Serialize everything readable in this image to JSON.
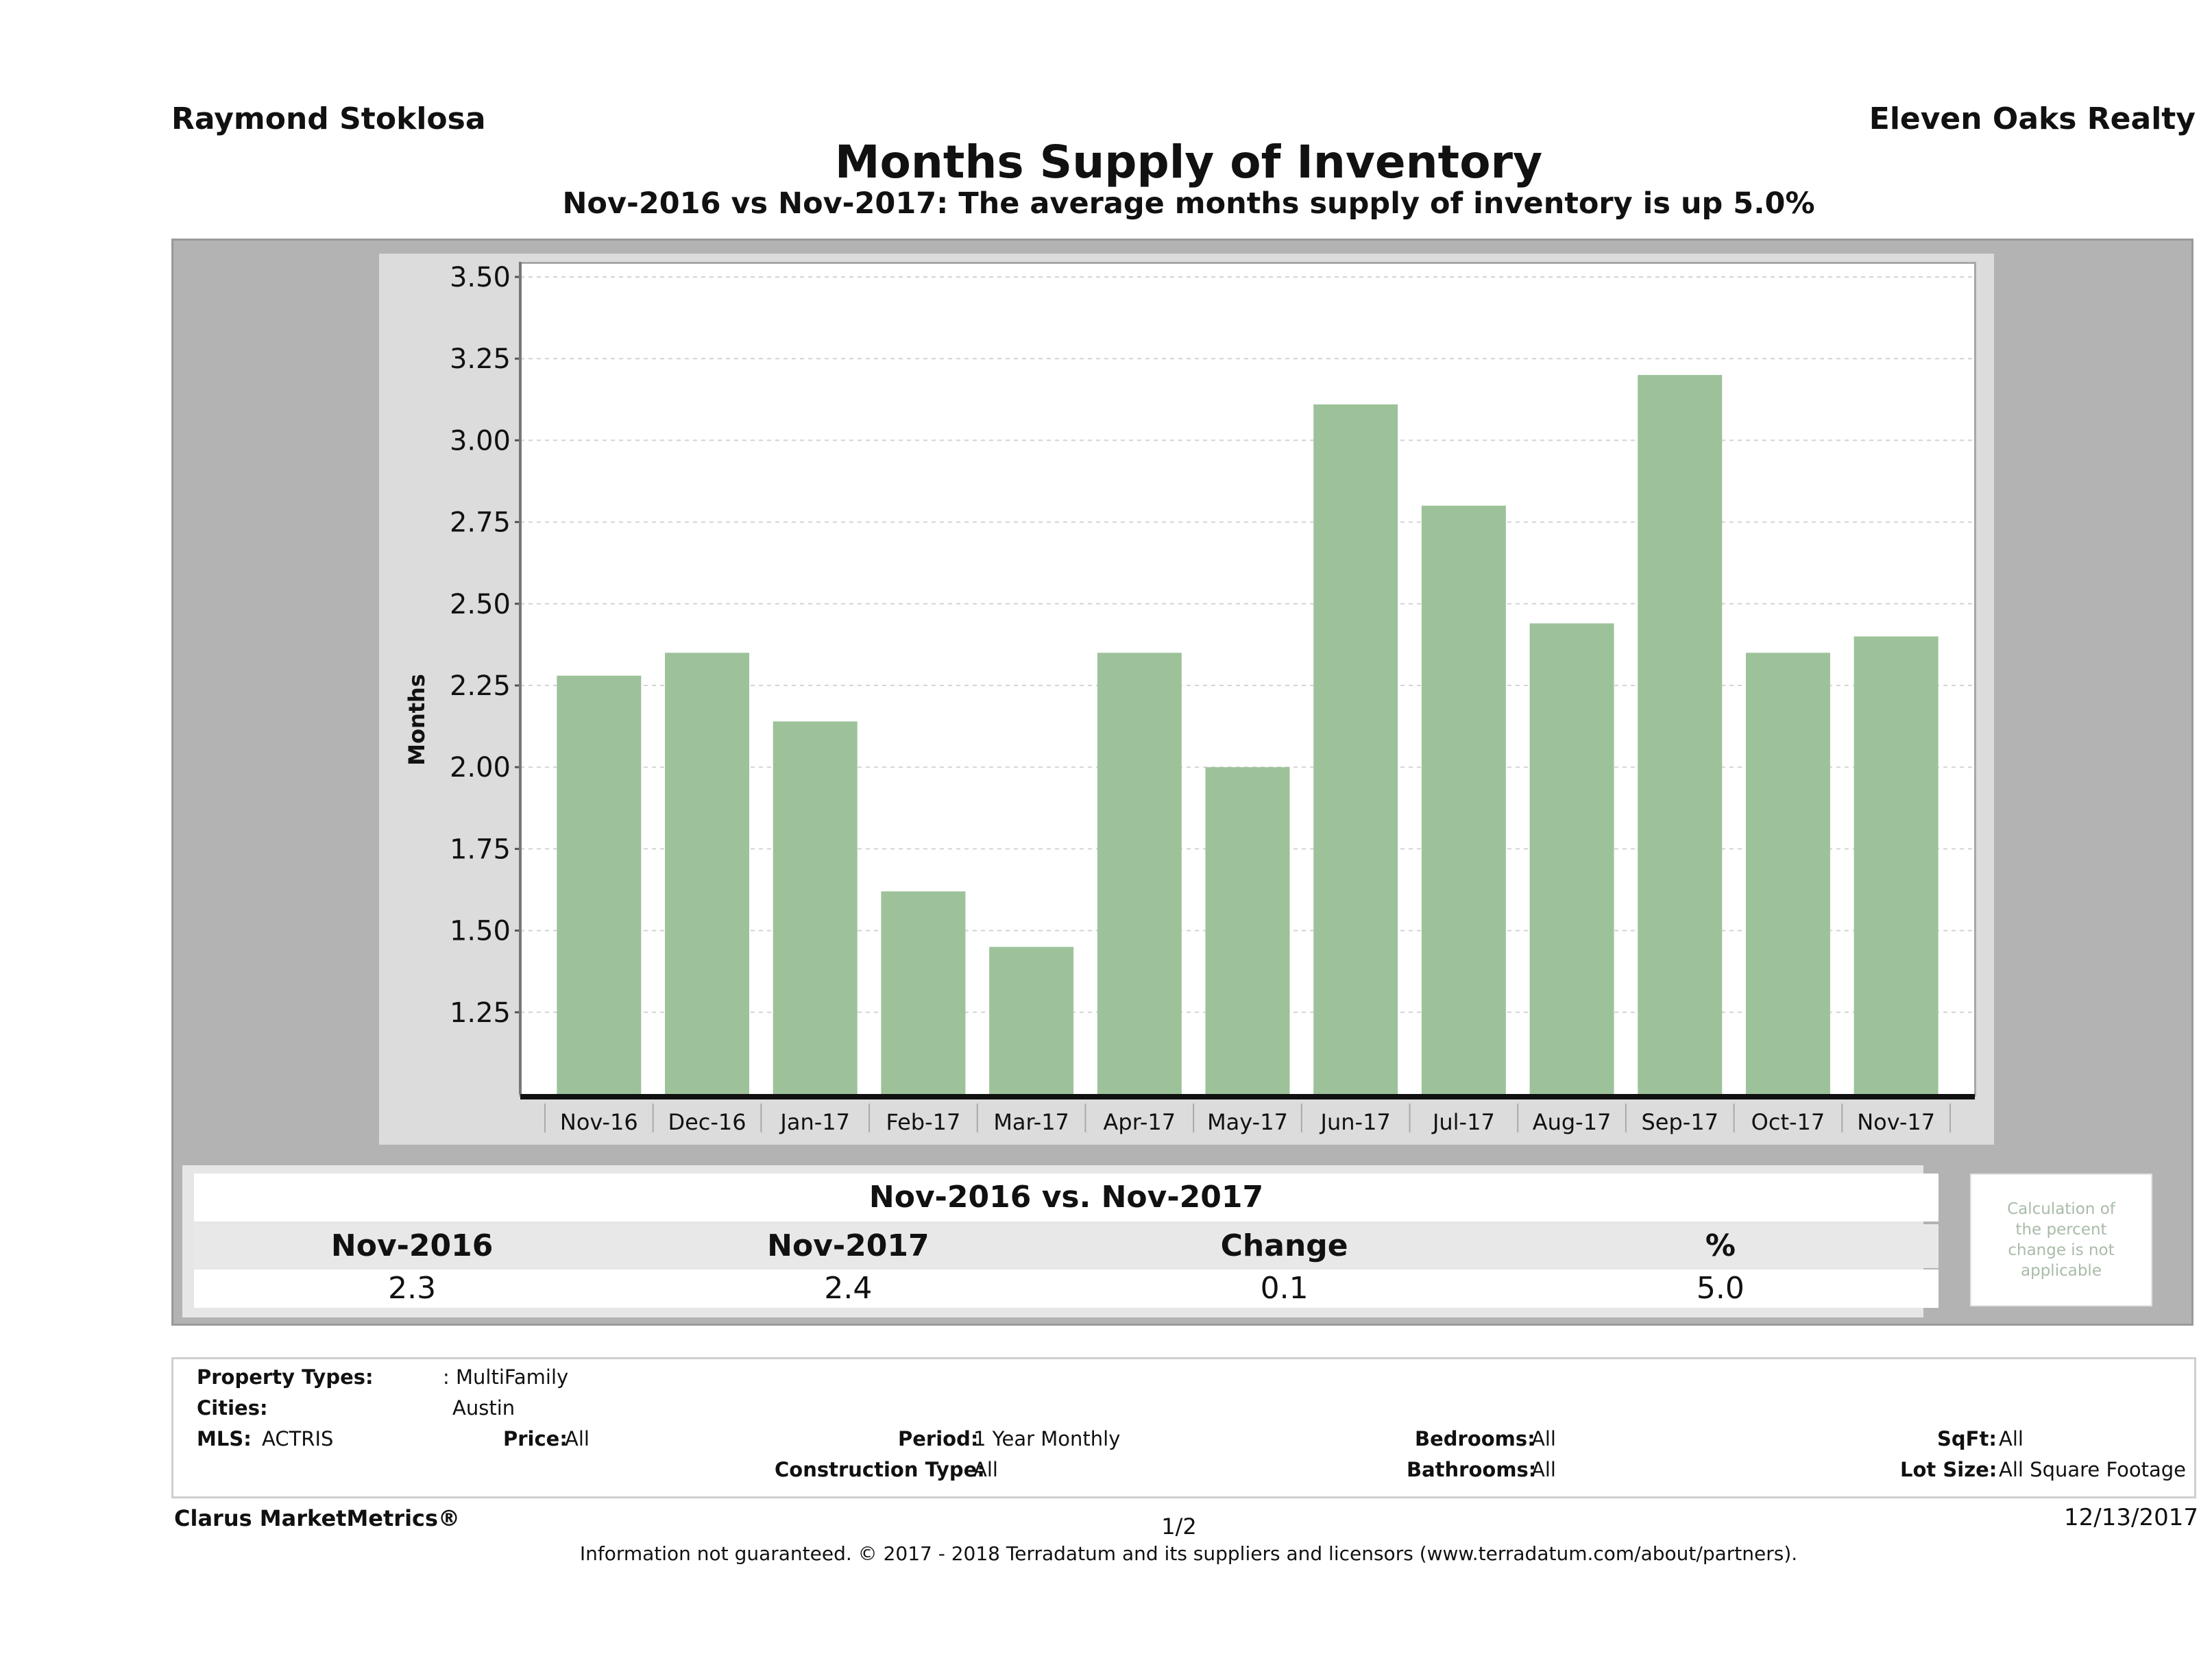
{
  "header": {
    "agent_name": "Raymond Stoklosa",
    "brokerage": "Eleven Oaks Realty"
  },
  "chart_data": {
    "type": "bar",
    "title": "Months Supply of Inventory",
    "subtitle": "Nov-2016 vs Nov-2017: The average months supply of inventory is up 5.0%",
    "xlabel": "",
    "ylabel": "Months",
    "ylim": [
      1.0,
      3.5
    ],
    "yticks": [
      "1.25",
      "1.50",
      "1.75",
      "2.00",
      "2.25",
      "2.50",
      "2.75",
      "3.00",
      "3.25",
      "3.50"
    ],
    "grid": true,
    "bar_color": "#9dc29a",
    "categories": [
      "Nov-16",
      "Dec-16",
      "Jan-17",
      "Feb-17",
      "Mar-17",
      "Apr-17",
      "May-17",
      "Jun-17",
      "Jul-17",
      "Aug-17",
      "Sep-17",
      "Oct-17",
      "Nov-17"
    ],
    "values": [
      2.28,
      2.35,
      2.14,
      1.62,
      1.45,
      2.35,
      2.0,
      3.11,
      2.8,
      2.44,
      3.2,
      2.35,
      2.4
    ]
  },
  "summary": {
    "title": "Nov-2016 vs. Nov-2017",
    "headers": [
      "Nov-2016",
      "Nov-2017",
      "Change",
      "%"
    ],
    "values": [
      "2.3",
      "2.4",
      "0.1",
      "5.0"
    ],
    "note": "Calculation of the percent change is not applicable"
  },
  "criteria": {
    "property_types_label": "Property Types:",
    "property_types_value": ": MultiFamily",
    "cities_label": "Cities:",
    "cities_value": "Austin",
    "mls_label": "MLS:",
    "mls_value": "ACTRIS",
    "price_label": "Price:",
    "price_value": "All",
    "period_label": "Period:",
    "period_value": "1 Year Monthly",
    "construction_label": "Construction Type:",
    "construction_value": "All",
    "bedrooms_label": "Bedrooms:",
    "bedrooms_value": "All",
    "bathrooms_label": "Bathrooms:",
    "bathrooms_value": "All",
    "sqft_label": "SqFt:",
    "sqft_value": "All",
    "lotsize_label": "Lot Size:",
    "lotsize_value": "All Square Footage"
  },
  "footer": {
    "brand": "Clarus MarketMetrics®",
    "page": "1/2",
    "date": "12/13/2017",
    "disclaimer": "Information not guaranteed. © 2017 - 2018 Terradatum and its suppliers and licensors (www.terradatum.com/about/partners)."
  }
}
